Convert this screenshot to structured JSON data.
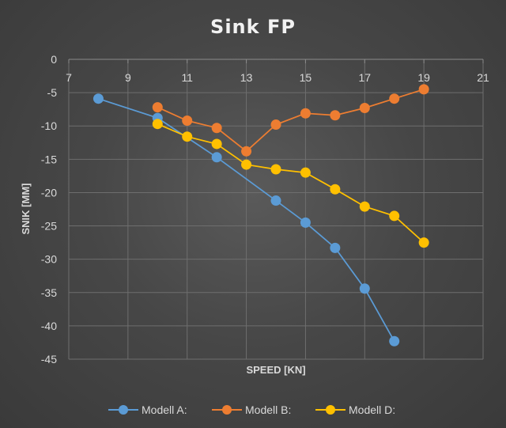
{
  "chart_data": {
    "type": "scatter",
    "title": "Sink FP",
    "xlabel": "SPEED [KN]",
    "ylabel": "SNIK [MM]",
    "xlim": [
      7,
      21
    ],
    "ylim": [
      -45,
      0
    ],
    "x_ticks": [
      7,
      9,
      11,
      13,
      15,
      17,
      19,
      21
    ],
    "y_ticks": [
      0,
      -5,
      -10,
      -15,
      -20,
      -25,
      -30,
      -35,
      -40,
      -45
    ],
    "grid": true,
    "legend_position": "bottom",
    "series": [
      {
        "name": "Modell A:",
        "color": "#5b9bd5",
        "x": [
          8,
          10,
          12,
          14,
          15,
          16,
          17,
          18
        ],
        "y": [
          -5.9,
          -8.8,
          -14.7,
          -21.2,
          -24.5,
          -28.3,
          -34.4,
          -42.3
        ]
      },
      {
        "name": "Modell B:",
        "color": "#ed7d31",
        "x": [
          10,
          11,
          12,
          13,
          14,
          15,
          16,
          17,
          18,
          19
        ],
        "y": [
          -7.2,
          -9.2,
          -10.3,
          -13.8,
          -9.8,
          -8.1,
          -8.4,
          -7.3,
          -5.9,
          -4.5
        ]
      },
      {
        "name": "Modell D:",
        "color": "#ffc000",
        "x": [
          10,
          11,
          12,
          13,
          14,
          15,
          16,
          17,
          18,
          19
        ],
        "y": [
          -9.7,
          -11.6,
          -12.7,
          -15.8,
          -16.5,
          -17.0,
          -19.5,
          -22.1,
          -23.5,
          -27.5
        ]
      }
    ]
  }
}
